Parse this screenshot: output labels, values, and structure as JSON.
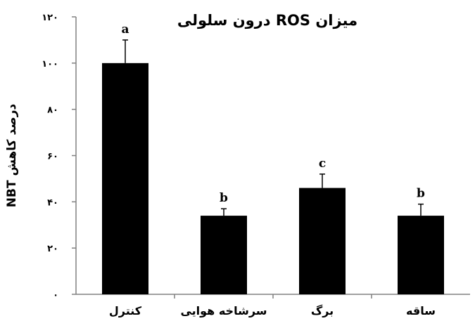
{
  "chart_data": {
    "type": "bar",
    "title": "میزان ROS درون سلولی",
    "ylabel": "درصد کاهش NBT",
    "xlabel": "",
    "ylim": [
      0,
      120
    ],
    "yticks": [
      0,
      20,
      40,
      60,
      80,
      100,
      120
    ],
    "ytick_labels": [
      "۰",
      "۲۰",
      "۴۰",
      "۶۰",
      "۸۰",
      "۱۰۰",
      "۱۲۰"
    ],
    "categories": [
      "کنترل",
      "سرشاخه هوایی",
      "برگ",
      "ساقه"
    ],
    "values": [
      100,
      34,
      46,
      34
    ],
    "errors": [
      10,
      3,
      6,
      5
    ],
    "significance_labels": [
      "a",
      "b",
      "c",
      "b"
    ],
    "grid": false,
    "bar_color": "#000000"
  }
}
